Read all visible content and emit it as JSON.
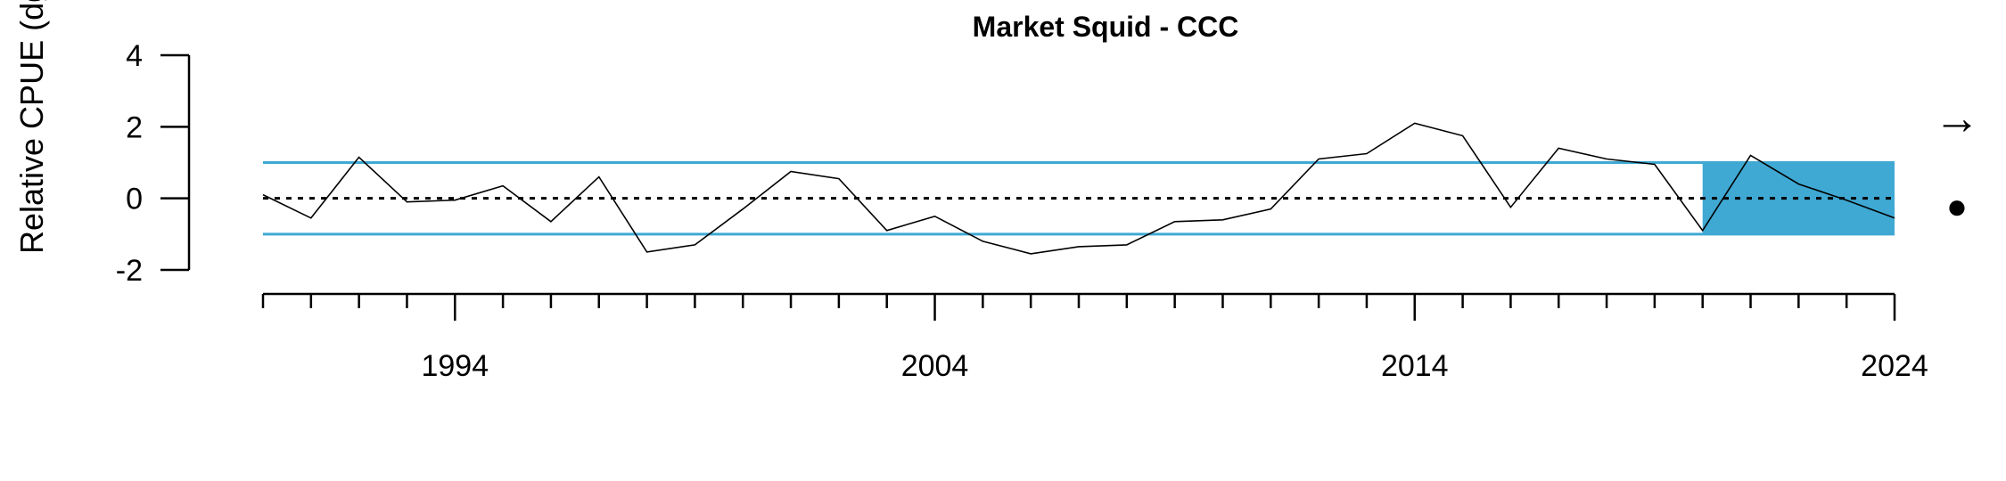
{
  "chart_data": {
    "type": "line",
    "title": "Market Squid - CCC",
    "ylabel": "Relative CPUE (dglm mod",
    "xlabel": "",
    "xlim": [
      1990,
      2024
    ],
    "ylim": [
      -2,
      4
    ],
    "yticks": [
      "-2",
      "0",
      "2",
      "4"
    ],
    "xtick_labels": [
      "1994",
      "2004",
      "2014",
      "2024"
    ],
    "mean": 0,
    "sd_band": [
      -1,
      1
    ],
    "highlight_period": [
      2020,
      2024
    ],
    "trend_symbol": "→",
    "status_symbol": "●",
    "colors": {
      "band": "#3FA9D3",
      "line": "#000000",
      "mean": "#000000"
    },
    "series": [
      {
        "x": [
          1990,
          1991,
          1992,
          1993,
          1994,
          1995,
          1996,
          1997,
          1998,
          1999,
          2000,
          2001,
          2002,
          2003,
          2004,
          2005,
          2006,
          2007,
          2008,
          2009,
          2010,
          2011,
          2012,
          2013,
          2014,
          2015,
          2016,
          2017,
          2018,
          2019,
          2020,
          2021,
          2022,
          2023,
          2024
        ],
        "values": [
          0.1,
          -0.55,
          1.15,
          -0.1,
          -0.05,
          0.35,
          -0.65,
          0.6,
          -1.5,
          -1.3,
          -0.3,
          0.75,
          0.55,
          -0.9,
          -0.5,
          -1.2,
          -1.55,
          -1.35,
          -1.3,
          -0.65,
          -0.6,
          -0.3,
          1.1,
          1.25,
          2.1,
          1.75,
          -0.25,
          1.4,
          1.1,
          0.95,
          -0.9,
          1.2,
          0.4,
          -0.05,
          -0.55
        ]
      }
    ]
  }
}
